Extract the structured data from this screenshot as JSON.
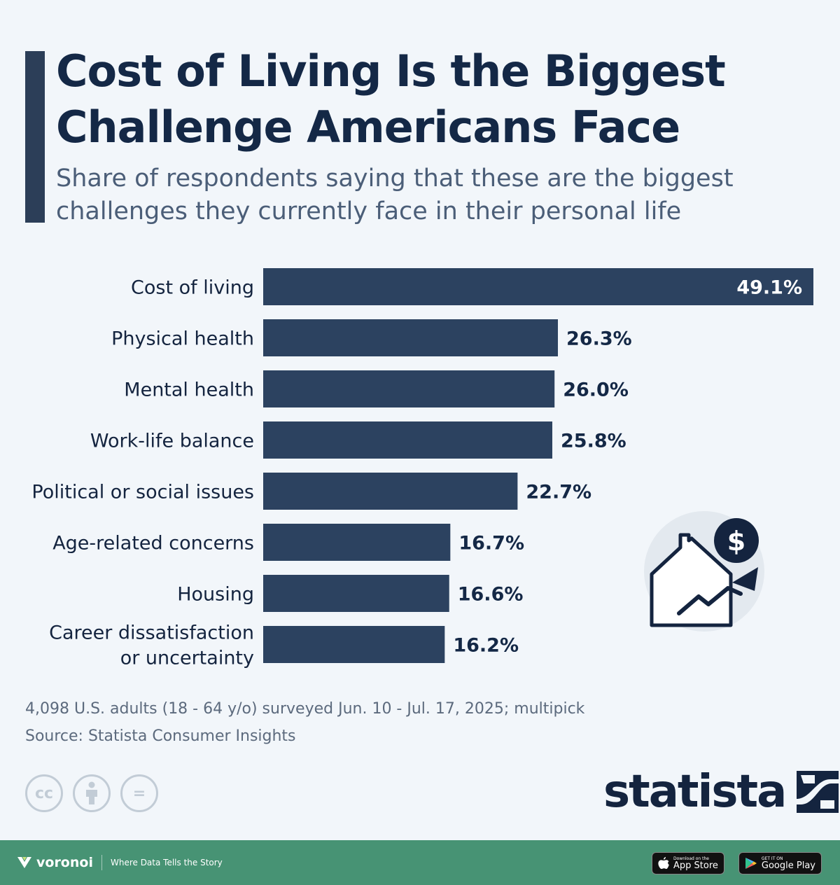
{
  "header": {
    "title": "Cost of Living Is the Biggest Challenge Americans Face",
    "subtitle": "Share of respondents saying that these are the biggest challenges they currently face in their personal life"
  },
  "chart_data": {
    "type": "bar",
    "orientation": "horizontal",
    "categories": [
      "Cost of living",
      "Physical health",
      "Mental health",
      "Work-life balance",
      "Political or social issues",
      "Age-related concerns",
      "Housing",
      "Career dissatisfaction or uncertainty"
    ],
    "values": [
      49.1,
      26.3,
      26.0,
      25.8,
      22.7,
      16.7,
      16.6,
      16.2
    ],
    "value_labels": [
      "49.1%",
      "26.3%",
      "26.0%",
      "25.8%",
      "22.7%",
      "16.7%",
      "16.6%",
      "16.2%"
    ],
    "unit": "%",
    "grid": false,
    "colors": {
      "bar": "#2c4260",
      "label_inside": "#ffffff",
      "label_outside": "#142846"
    }
  },
  "footnote": {
    "note": "4,098 U.S. adults (18 - 64 y/o) surveyed Jun. 10 - Jul. 17, 2025; multipick",
    "source": "Source: Statista Consumer Insights"
  },
  "license_icons": [
    "cc-icon",
    "attribution-icon",
    "no-derivatives-icon"
  ],
  "license_icon_labels": [
    "cc",
    "",
    "="
  ],
  "brand": {
    "name": "statista"
  },
  "footer": {
    "brand": "voronoi",
    "tagline": "Where Data Tells the Story",
    "app_store": {
      "small": "Download on the",
      "big": "App Store"
    },
    "google_play": {
      "small": "GET IT ON",
      "big": "Google Play"
    },
    "color": "#479374"
  },
  "illustration": {
    "icon": "house-rising-price-icon",
    "symbol": "$"
  }
}
